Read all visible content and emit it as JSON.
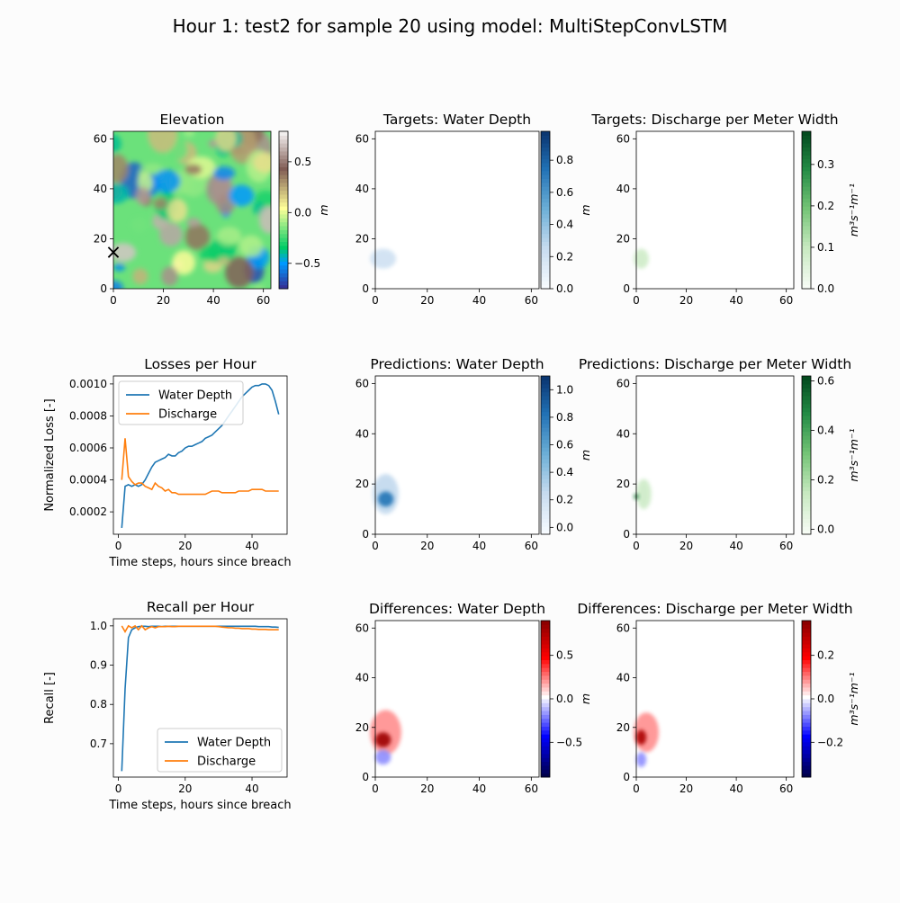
{
  "figure": {
    "title": "Hour 1: test2 for sample 20 using model: MultiStepConvLSTM"
  },
  "chart_data": [
    {
      "type": "heatmap",
      "title": "Elevation",
      "xlim": [
        0,
        63
      ],
      "ylim": [
        0,
        63
      ],
      "ticks": [
        "0",
        "20",
        "40",
        "60"
      ],
      "colorbar": {
        "ticks": [
          "0.5",
          "0.0",
          "−0.5"
        ],
        "label": "m",
        "range": [
          -0.75,
          0.8
        ],
        "colormap": "terrain"
      },
      "marker": {
        "symbol": "×",
        "x": 0,
        "y": 15
      }
    },
    {
      "type": "heatmap",
      "title": "Targets: Water Depth",
      "xlim": [
        0,
        63
      ],
      "ylim": [
        0,
        63
      ],
      "ticks": [
        "0",
        "20",
        "40",
        "60"
      ],
      "colorbar": {
        "ticks": [
          "0.8",
          "0.6",
          "0.4",
          "0.2",
          "0.0"
        ],
        "label": "m",
        "range": [
          0,
          0.98
        ],
        "colormap": "Blues"
      },
      "blobs": [
        {
          "x": 3,
          "y": 12,
          "rx": 5,
          "ry": 4,
          "value": 0.2
        }
      ]
    },
    {
      "type": "heatmap",
      "title": "Targets: Discharge per Meter Width",
      "xlim": [
        0,
        63
      ],
      "ylim": [
        0,
        63
      ],
      "ticks": [
        "0",
        "20",
        "40",
        "60"
      ],
      "colorbar": {
        "ticks": [
          "0.3",
          "0.2",
          "0.1",
          "0.0"
        ],
        "label": "m³s⁻¹m⁻¹",
        "range": [
          0,
          0.38
        ],
        "colormap": "Greens"
      },
      "blobs": [
        {
          "x": 2,
          "y": 12,
          "rx": 3,
          "ry": 4,
          "value": 0.08
        }
      ]
    },
    {
      "type": "line",
      "title": "Losses per Hour",
      "xlabel": "Time steps, hours since breach",
      "ylabel": "Normalized Loss [-]",
      "xlim": [
        -1.5,
        50.5
      ],
      "ylim": [
        6e-05,
        0.00105
      ],
      "xticks": [
        0,
        20,
        40
      ],
      "yticks": [
        0.0002,
        0.0004,
        0.0006,
        0.0008,
        0.001
      ],
      "ytick_labels": [
        "0.0002",
        "0.0004",
        "0.0006",
        "0.0008",
        "0.0010"
      ],
      "legend": "upper-left",
      "series": [
        {
          "name": "Water Depth",
          "color": "#1f77b4",
          "x": [
            1,
            2,
            3,
            4,
            5,
            6,
            7,
            8,
            9,
            10,
            11,
            12,
            13,
            14,
            15,
            16,
            17,
            18,
            19,
            20,
            21,
            22,
            23,
            24,
            25,
            26,
            27,
            28,
            29,
            30,
            31,
            32,
            33,
            34,
            35,
            36,
            37,
            38,
            39,
            40,
            41,
            42,
            43,
            44,
            45,
            46,
            47,
            48
          ],
          "y": [
            0.0001,
            0.00036,
            0.00037,
            0.00036,
            0.00037,
            0.00036,
            0.00037,
            0.0004,
            0.00044,
            0.00048,
            0.00051,
            0.00052,
            0.00053,
            0.00054,
            0.00056,
            0.00055,
            0.00055,
            0.00057,
            0.00058,
            0.0006,
            0.00061,
            0.00061,
            0.00062,
            0.00063,
            0.00064,
            0.00066,
            0.00067,
            0.00068,
            0.0007,
            0.00072,
            0.00074,
            0.00077,
            0.0008,
            0.00083,
            0.00086,
            0.00089,
            0.00092,
            0.00094,
            0.00096,
            0.00098,
            0.00099,
            0.00099,
            0.001,
            0.001,
            0.00099,
            0.00096,
            0.00089,
            0.00081
          ]
        },
        {
          "name": "Discharge",
          "color": "#ff7f0e",
          "x": [
            1,
            2,
            3,
            4,
            5,
            6,
            7,
            8,
            9,
            10,
            11,
            12,
            13,
            14,
            15,
            16,
            17,
            18,
            19,
            20,
            21,
            22,
            23,
            24,
            25,
            26,
            27,
            28,
            29,
            30,
            31,
            32,
            33,
            34,
            35,
            36,
            37,
            38,
            39,
            40,
            41,
            42,
            43,
            44,
            45,
            46,
            47,
            48
          ],
          "y": [
            0.0004,
            0.00066,
            0.00042,
            0.00039,
            0.00037,
            0.00038,
            0.00038,
            0.00036,
            0.00035,
            0.00034,
            0.00038,
            0.00036,
            0.00035,
            0.00033,
            0.00034,
            0.00032,
            0.00032,
            0.00031,
            0.00031,
            0.00031,
            0.00031,
            0.00031,
            0.00031,
            0.00031,
            0.00031,
            0.00031,
            0.00032,
            0.00033,
            0.00033,
            0.00033,
            0.00032,
            0.00032,
            0.00032,
            0.00032,
            0.00032,
            0.00033,
            0.00033,
            0.00033,
            0.00033,
            0.00034,
            0.00034,
            0.00034,
            0.00034,
            0.00033,
            0.00033,
            0.00033,
            0.00033,
            0.00033
          ]
        }
      ]
    },
    {
      "type": "heatmap",
      "title": "Predictions: Water Depth",
      "xlim": [
        0,
        63
      ],
      "ylim": [
        0,
        63
      ],
      "ticks": [
        "0",
        "20",
        "40",
        "60"
      ],
      "colorbar": {
        "ticks": [
          "1.0",
          "0.8",
          "0.6",
          "0.4",
          "0.2",
          "0.0"
        ],
        "label": "m",
        "range": [
          -0.05,
          1.1
        ],
        "colormap": "Blues"
      },
      "blobs": [
        {
          "x": 4,
          "y": 16,
          "rx": 5,
          "ry": 8,
          "value": 0.25
        },
        {
          "x": 4,
          "y": 14,
          "rx": 3,
          "ry": 3,
          "value": 0.8
        }
      ]
    },
    {
      "type": "heatmap",
      "title": "Predictions: Discharge per Meter Width",
      "xlim": [
        0,
        63
      ],
      "ylim": [
        0,
        63
      ],
      "ticks": [
        "0",
        "20",
        "40",
        "60"
      ],
      "colorbar": {
        "ticks": [
          "0.6",
          "0.4",
          "0.2",
          "0.0"
        ],
        "label": "m³s⁻¹m⁻¹",
        "range": [
          -0.02,
          0.62
        ],
        "colormap": "Greens"
      },
      "blobs": [
        {
          "x": 3,
          "y": 16,
          "rx": 3,
          "ry": 6,
          "value": 0.12
        },
        {
          "x": 0,
          "y": 15,
          "rx": 1,
          "ry": 1,
          "value": 0.5
        }
      ]
    },
    {
      "type": "line",
      "title": "Recall per Hour",
      "xlabel": "Time steps, hours since breach",
      "ylabel": "Recall [-]",
      "xlim": [
        -1.5,
        50.5
      ],
      "ylim": [
        0.615,
        1.018
      ],
      "xticks": [
        0,
        20,
        40
      ],
      "yticks": [
        0.7,
        0.8,
        0.9,
        1.0
      ],
      "ytick_labels": [
        "0.7",
        "0.8",
        "0.9",
        "1.0"
      ],
      "legend": "lower-right",
      "series": [
        {
          "name": "Water Depth",
          "color": "#1f77b4",
          "x": [
            1,
            2,
            3,
            4,
            5,
            6,
            7,
            8,
            9,
            10,
            11,
            12,
            13,
            14,
            15,
            16,
            17,
            18,
            19,
            20,
            21,
            22,
            23,
            24,
            25,
            26,
            27,
            28,
            29,
            30,
            31,
            32,
            33,
            34,
            35,
            36,
            37,
            38,
            39,
            40,
            41,
            42,
            43,
            44,
            45,
            46,
            47,
            48
          ],
          "y": [
            0.63,
            0.84,
            0.97,
            0.99,
            0.995,
            0.998,
            0.999,
            0.999,
            0.998,
            0.999,
            0.999,
            0.999,
            0.998,
            0.999,
            0.999,
            0.999,
            0.999,
            0.999,
            0.999,
            0.999,
            0.999,
            0.999,
            0.999,
            0.999,
            0.999,
            0.999,
            0.999,
            0.999,
            0.999,
            0.999,
            0.999,
            0.999,
            0.999,
            0.999,
            0.999,
            0.999,
            0.999,
            0.999,
            0.999,
            0.999,
            0.999,
            0.998,
            0.998,
            0.998,
            0.998,
            0.997,
            0.997,
            0.996
          ]
        },
        {
          "name": "Discharge",
          "color": "#ff7f0e",
          "x": [
            1,
            2,
            3,
            4,
            5,
            6,
            7,
            8,
            9,
            10,
            11,
            12,
            13,
            14,
            15,
            16,
            17,
            18,
            19,
            20,
            21,
            22,
            23,
            24,
            25,
            26,
            27,
            28,
            29,
            30,
            31,
            32,
            33,
            34,
            35,
            36,
            37,
            38,
            39,
            40,
            41,
            42,
            43,
            44,
            45,
            46,
            47,
            48
          ],
          "y": [
            1.0,
            0.985,
            1.0,
            0.995,
            1.0,
            0.99,
            1.0,
            0.99,
            0.995,
            0.998,
            0.995,
            0.998,
            0.998,
            0.998,
            0.999,
            0.998,
            0.998,
            0.999,
            0.999,
            0.999,
            0.999,
            0.999,
            0.999,
            0.999,
            0.999,
            0.999,
            0.999,
            0.999,
            0.999,
            0.998,
            0.997,
            0.996,
            0.995,
            0.995,
            0.994,
            0.994,
            0.993,
            0.993,
            0.993,
            0.992,
            0.992,
            0.991,
            0.991,
            0.991,
            0.99,
            0.99,
            0.99,
            0.99
          ]
        }
      ]
    },
    {
      "type": "heatmap",
      "title": "Differences: Water Depth",
      "xlim": [
        0,
        63
      ],
      "ylim": [
        0,
        63
      ],
      "ticks": [
        "0",
        "20",
        "40",
        "60"
      ],
      "colorbar": {
        "ticks": [
          "0.5",
          "0.0",
          "−0.5"
        ],
        "label": "m",
        "range": [
          -0.9,
          0.9
        ],
        "colormap": "seismic"
      },
      "blobs": [
        {
          "x": 4,
          "y": 18,
          "rx": 6,
          "ry": 9,
          "value": 0.2
        },
        {
          "x": 3,
          "y": 15,
          "rx": 3,
          "ry": 3,
          "value": 0.8
        },
        {
          "x": 3,
          "y": 8,
          "rx": 3,
          "ry": 3,
          "value": -0.2
        }
      ]
    },
    {
      "type": "heatmap",
      "title": "Differences: Discharge per Meter Width",
      "xlim": [
        0,
        63
      ],
      "ylim": [
        0,
        63
      ],
      "ticks": [
        "0",
        "20",
        "40",
        "60"
      ],
      "colorbar": {
        "ticks": [
          "0.2",
          "0.0",
          "−0.2"
        ],
        "label": "m³s⁻¹m⁻¹",
        "range": [
          -0.36,
          0.36
        ],
        "colormap": "seismic"
      },
      "blobs": [
        {
          "x": 4,
          "y": 18,
          "rx": 5,
          "ry": 8,
          "value": 0.08
        },
        {
          "x": 2,
          "y": 16,
          "rx": 2,
          "ry": 3,
          "value": 0.3
        },
        {
          "x": 2,
          "y": 7,
          "rx": 2,
          "ry": 3,
          "value": -0.08
        }
      ]
    }
  ]
}
